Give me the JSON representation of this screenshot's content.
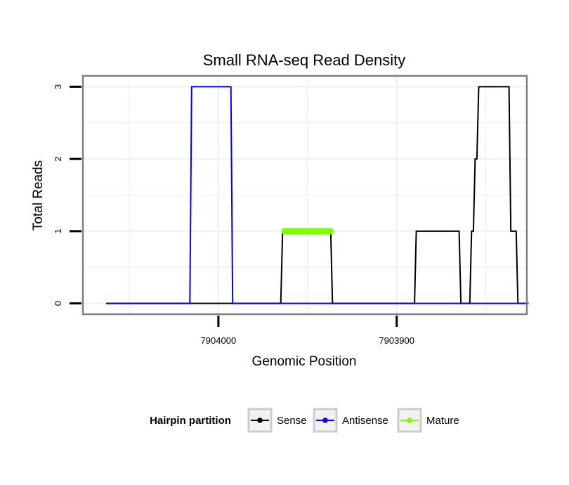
{
  "chart_data": {
    "type": "line",
    "title": "Small RNA-seq Read Density",
    "xlabel": "Genomic Position",
    "ylabel": "Total Reads",
    "x_reversed": true,
    "xlim": [
      7904076,
      7903827
    ],
    "ylim": [
      -0.15,
      3.15
    ],
    "x_ticks": [
      {
        "value": 7904000,
        "label": "7904000"
      },
      {
        "value": 7903900,
        "label": "7903900"
      }
    ],
    "y_ticks": [
      {
        "value": 0,
        "label": "0"
      },
      {
        "value": 1,
        "label": "1"
      },
      {
        "value": 2,
        "label": "2"
      },
      {
        "value": 3,
        "label": "3"
      }
    ],
    "grid": true,
    "legend": {
      "title": "Hairpin partition",
      "position": "bottom",
      "entries": [
        {
          "name": "Sense",
          "color": "#000000"
        },
        {
          "name": "Antisense",
          "color": "#0000ff"
        },
        {
          "name": "Mature",
          "color": "#7fff00"
        }
      ]
    },
    "series": [
      {
        "name": "Sense",
        "color": "#000000",
        "x": [
          7904063,
          7903965,
          7903964,
          7903937,
          7903936,
          7903890,
          7903889,
          7903865,
          7903864,
          7903859,
          7903858,
          7903857,
          7903856,
          7903855,
          7903854,
          7903853,
          7903852,
          7903837,
          7903836,
          7903833,
          7903832,
          7903826
        ],
        "y": [
          0,
          0,
          1,
          1,
          0,
          0,
          1,
          1,
          0,
          0,
          1,
          1,
          2,
          2,
          3,
          3,
          3,
          3,
          1,
          1,
          0,
          0
        ]
      },
      {
        "name": "Antisense",
        "color": "#0000ff",
        "x": [
          7904063,
          7904016,
          7904015,
          7903993,
          7903992,
          7903826
        ],
        "y": [
          0,
          0,
          3,
          3,
          0,
          0
        ]
      },
      {
        "name": "Mature",
        "color": "#7fff00",
        "x": [
          7903963,
          7903937
        ],
        "y": [
          1,
          1
        ]
      }
    ]
  }
}
